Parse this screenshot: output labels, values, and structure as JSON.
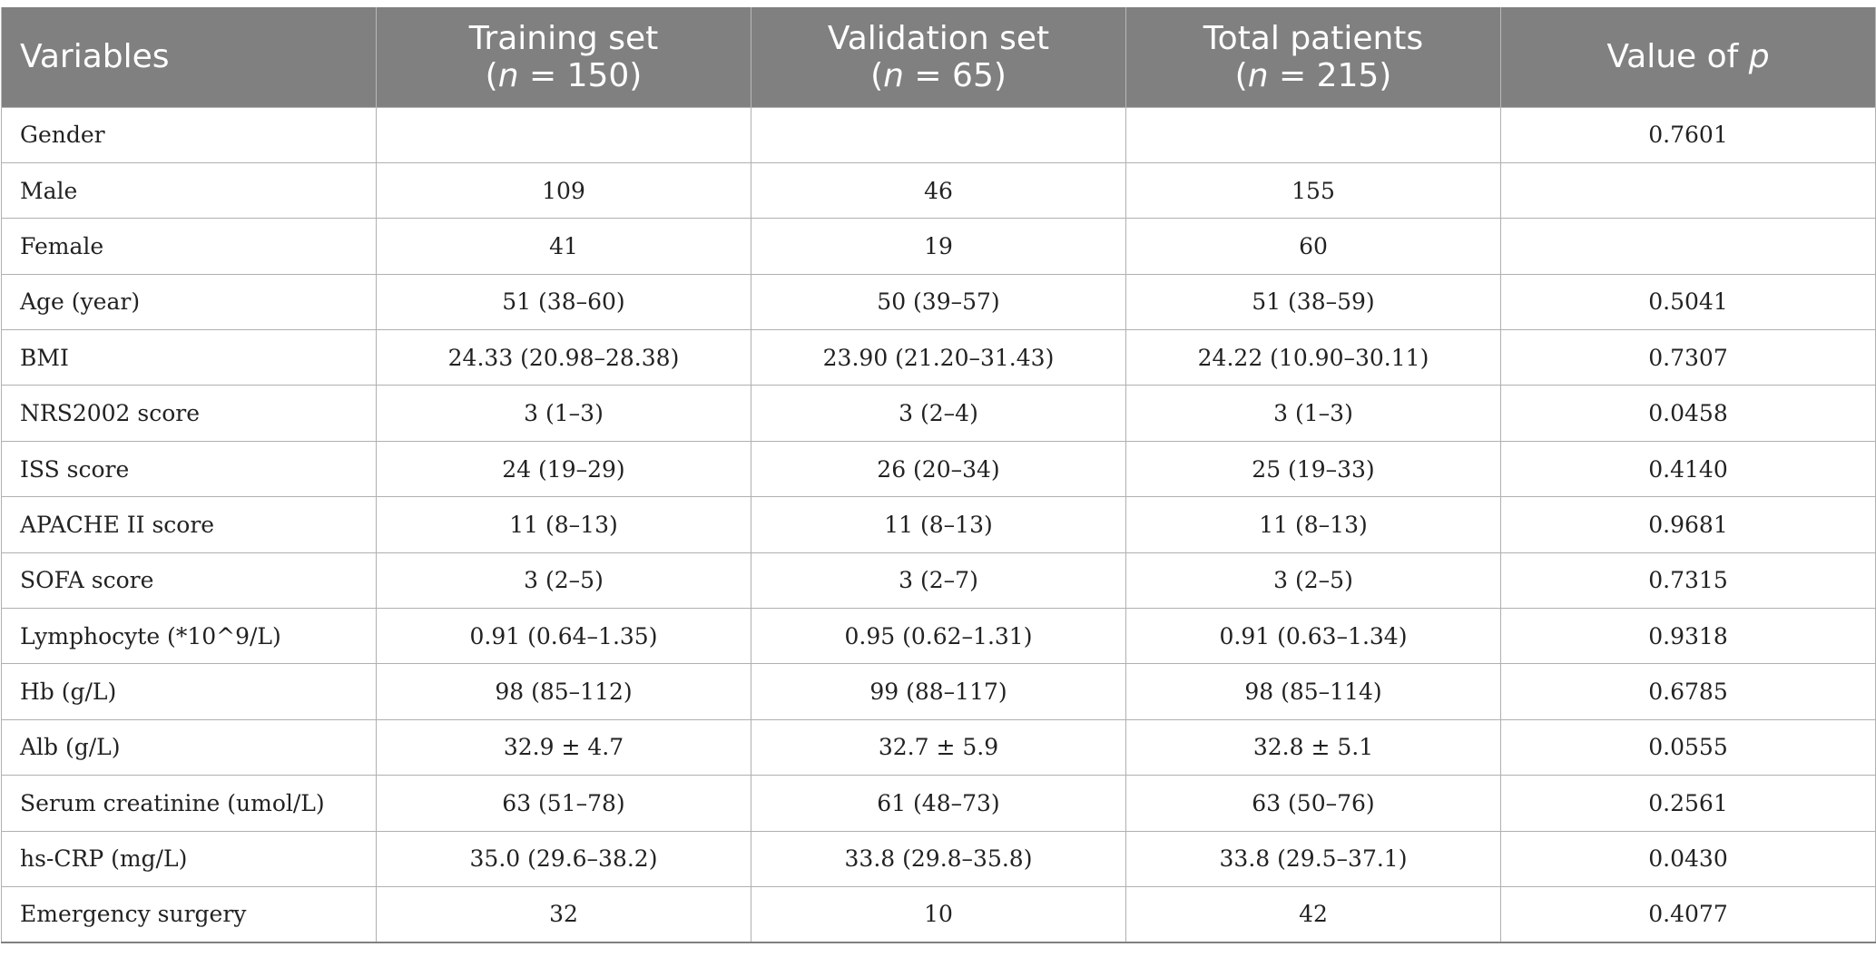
{
  "table": {
    "headers": [
      {
        "line1": "Variables",
        "line2": ""
      },
      {
        "line1": "Training set",
        "line2_pre": "(",
        "line2_n": "n",
        "line2_post": " = 150)"
      },
      {
        "line1": "Validation set",
        "line2_pre": "(",
        "line2_n": "n",
        "line2_post": " = 65)"
      },
      {
        "line1": "Total patients",
        "line2_pre": "(",
        "line2_n": "n",
        "line2_post": " = 215)"
      },
      {
        "line1": "Value of ",
        "line1_italic": "p"
      }
    ],
    "rows": [
      [
        "Gender",
        "",
        "",
        "",
        "0.7601"
      ],
      [
        "Male",
        "109",
        "46",
        "155",
        ""
      ],
      [
        "Female",
        "41",
        "19",
        "60",
        ""
      ],
      [
        "Age (year)",
        "51 (38–60)",
        "50 (39–57)",
        "51 (38–59)",
        "0.5041"
      ],
      [
        "BMI",
        "24.33 (20.98–28.38)",
        "23.90 (21.20–31.43)",
        "24.22 (10.90–30.11)",
        "0.7307"
      ],
      [
        "NRS2002 score",
        "3 (1–3)",
        "3 (2–4)",
        "3 (1–3)",
        "0.0458"
      ],
      [
        "ISS score",
        "24 (19–29)",
        "26 (20–34)",
        "25 (19–33)",
        "0.4140"
      ],
      [
        "APACHE II score",
        "11 (8–13)",
        "11 (8–13)",
        "11 (8–13)",
        "0.9681"
      ],
      [
        "SOFA score",
        "3 (2–5)",
        "3 (2–7)",
        "3 (2–5)",
        "0.7315"
      ],
      [
        "Lymphocyte (*10^9/L)",
        "0.91 (0.64–1.35)",
        "0.95 (0.62–1.31)",
        "0.91 (0.63–1.34)",
        "0.9318"
      ],
      [
        "Hb (g/L)",
        "98 (85–112)",
        "99 (88–117)",
        "98 (85–114)",
        "0.6785"
      ],
      [
        "Alb (g/L)",
        "32.9 ± 4.7",
        "32.7 ± 5.9",
        "32.8 ± 5.1",
        "0.0555"
      ],
      [
        "Serum creatinine (umol/L)",
        "63 (51–78)",
        "61 (48–73)",
        "63 (50–76)",
        "0.2561"
      ],
      [
        "hs-CRP (mg/L)",
        "35.0 (29.6–38.2)",
        "33.8 (29.8–35.8)",
        "33.8 (29.5–37.1)",
        "0.0430"
      ],
      [
        "Emergency surgery",
        "32",
        "10",
        "42",
        "0.4077"
      ]
    ]
  },
  "colors": {
    "header_bg": "#808080",
    "header_text": "#ffffff",
    "grid_line": "#b0b0b0"
  }
}
